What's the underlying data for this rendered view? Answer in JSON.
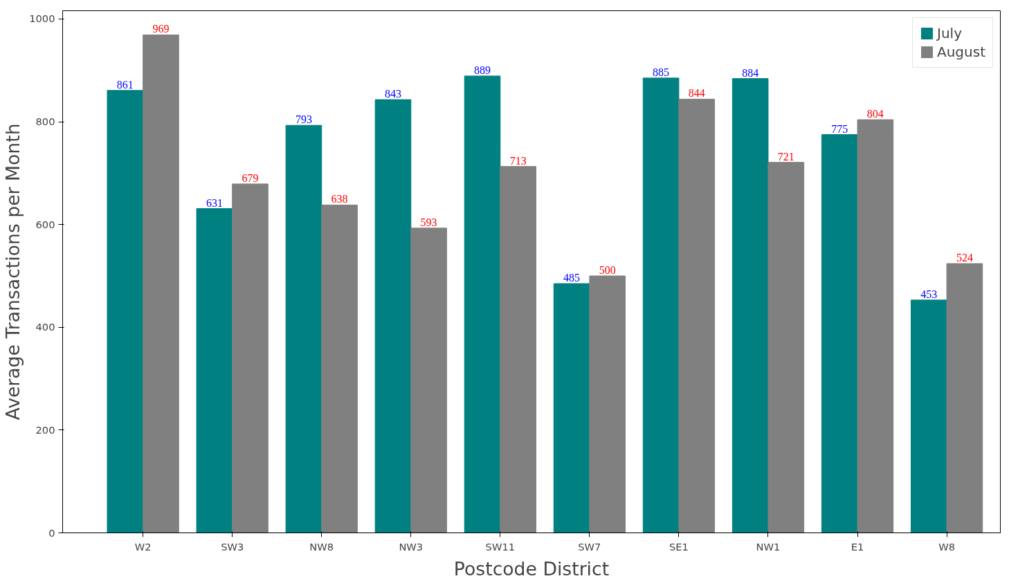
{
  "chart_data": {
    "type": "bar",
    "xlabel": "Postcode District",
    "ylabel": "Average Transactions per Month",
    "categories": [
      "W2",
      "SW3",
      "NW8",
      "NW3",
      "SW11",
      "SW7",
      "SE1",
      "NW1",
      "E1",
      "W8"
    ],
    "series": [
      {
        "name": "July",
        "color": "#008080",
        "values": [
          861,
          631,
          793,
          843,
          889,
          485,
          885,
          884,
          775,
          453
        ]
      },
      {
        "name": "August",
        "color": "#808080",
        "values": [
          969,
          679,
          638,
          593,
          713,
          500,
          844,
          721,
          804,
          524
        ]
      }
    ],
    "ylim": [
      0,
      1016
    ],
    "yticks": [
      0,
      200,
      400,
      600,
      800,
      1000
    ],
    "grid": false,
    "legend": "top right",
    "data_labels": true
  }
}
